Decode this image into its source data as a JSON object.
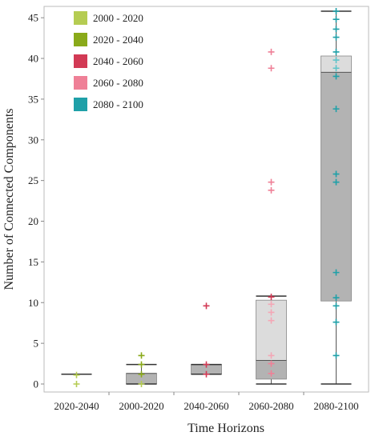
{
  "chart_data": {
    "type": "box",
    "xlabel": "Time Horizons",
    "ylabel": "Number of Connected Components",
    "ylim": [
      0,
      46
    ],
    "yticks": [
      0,
      5,
      10,
      15,
      20,
      25,
      30,
      35,
      40,
      45
    ],
    "grid": false,
    "legend_position": "top-left",
    "categories": [
      "2020-2040",
      "2000-2020",
      "2040-2060",
      "2060-2080",
      "2080-2100"
    ],
    "legend": [
      {
        "label": "2000 - 2020",
        "color": "#b5cc52"
      },
      {
        "label": "2020 - 2040",
        "color": "#8aaa1a"
      },
      {
        "label": "2040 - 2060",
        "color": "#d23a55"
      },
      {
        "label": "2060 - 2080",
        "color": "#ef8097"
      },
      {
        "label": "2080 - 2100",
        "color": "#1fa0a8"
      }
    ],
    "boxes": [
      {
        "category": "2020-2040",
        "whisker_low": 1.2,
        "q1": 1.2,
        "median": 1.2,
        "q3": 1.2,
        "whisker_high": 1.2,
        "points": [
          {
            "y": 1.1,
            "color": "#b5cc52"
          },
          {
            "y": 0.0,
            "color": "#b5cc52"
          }
        ]
      },
      {
        "category": "2000-2020",
        "whisker_low": 0.0,
        "q1": 0.0,
        "median": 1.3,
        "q3": 1.3,
        "whisker_high": 2.4,
        "points": [
          {
            "y": 3.5,
            "color": "#8aaa1a"
          },
          {
            "y": 2.4,
            "color": "#8aaa1a"
          },
          {
            "y": 1.2,
            "color": "#8aaa1a"
          },
          {
            "y": 0.0,
            "color": "#b5cc52"
          }
        ]
      },
      {
        "category": "2040-2060",
        "whisker_low": 1.2,
        "q1": 1.2,
        "median": 2.4,
        "q3": 2.4,
        "whisker_high": 2.4,
        "points": [
          {
            "y": 9.6,
            "color": "#d23a55"
          },
          {
            "y": 2.4,
            "color": "#d23a55"
          },
          {
            "y": 1.2,
            "color": "#d23a55"
          }
        ]
      },
      {
        "category": "2060-2080",
        "whisker_low": 0.0,
        "q1": 0.6,
        "median": 2.9,
        "q3": 10.3,
        "whisker_high": 10.8,
        "points": [
          {
            "y": 40.8,
            "color": "#ef8097"
          },
          {
            "y": 38.8,
            "color": "#ef8097"
          },
          {
            "y": 24.8,
            "color": "#ef8097"
          },
          {
            "y": 23.8,
            "color": "#ef8097"
          },
          {
            "y": 10.7,
            "color": "#d23a55"
          },
          {
            "y": 9.8,
            "color": "#f4a7b6"
          },
          {
            "y": 8.8,
            "color": "#f4a7b6"
          },
          {
            "y": 7.8,
            "color": "#f4a7b6"
          },
          {
            "y": 3.5,
            "color": "#f4a7b6"
          },
          {
            "y": 2.5,
            "color": "#ef8097"
          },
          {
            "y": 1.3,
            "color": "#ef8097"
          }
        ]
      },
      {
        "category": "2080-2100",
        "whisker_low": 0.0,
        "q1": 10.2,
        "median": 38.3,
        "q3": 40.3,
        "whisker_high": 45.8,
        "points": [
          {
            "y": 45.8,
            "color": "#1fa0a8"
          },
          {
            "y": 44.8,
            "color": "#1fa0a8"
          },
          {
            "y": 43.6,
            "color": "#1fa0a8"
          },
          {
            "y": 42.6,
            "color": "#1fa0a8"
          },
          {
            "y": 40.8,
            "color": "#1fa0a8"
          },
          {
            "y": 39.8,
            "color": "#5fc4c9"
          },
          {
            "y": 38.8,
            "color": "#5fc4c9"
          },
          {
            "y": 37.8,
            "color": "#1fa0a8"
          },
          {
            "y": 33.8,
            "color": "#1fa0a8"
          },
          {
            "y": 25.8,
            "color": "#1fa0a8"
          },
          {
            "y": 24.8,
            "color": "#1fa0a8"
          },
          {
            "y": 13.7,
            "color": "#1fa0a8"
          },
          {
            "y": 10.6,
            "color": "#1fa0a8"
          },
          {
            "y": 9.6,
            "color": "#1fa0a8"
          },
          {
            "y": 7.6,
            "color": "#1fa0a8"
          },
          {
            "y": 3.5,
            "color": "#1fa0a8"
          }
        ]
      }
    ]
  }
}
